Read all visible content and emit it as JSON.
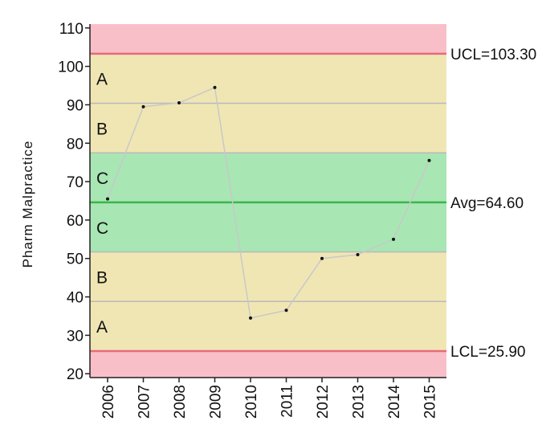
{
  "chart_data": {
    "type": "line",
    "title": "",
    "xlabel": "",
    "ylabel": "Pharm Malpractice",
    "x": [
      "2006",
      "2007",
      "2008",
      "2009",
      "2010",
      "2011",
      "2012",
      "2013",
      "2014",
      "2015"
    ],
    "series": [
      {
        "values": [
          65.5,
          89.5,
          90.5,
          94.5,
          34.5,
          36.5,
          50,
          51,
          55,
          75.5
        ]
      }
    ],
    "ylim": [
      19,
      111
    ],
    "yticks": [
      "20",
      "30",
      "40",
      "50",
      "60",
      "70",
      "80",
      "90",
      "100",
      "110"
    ],
    "control_limits": {
      "ucl": {
        "value": 103.3,
        "label": "UCL=103.30"
      },
      "avg": {
        "value": 64.6,
        "label": "Avg=64.60"
      },
      "lcl": {
        "value": 25.9,
        "label": "LCL=25.90"
      }
    },
    "zones": [
      {
        "label": "A",
        "from": 90.4,
        "to": 103.3,
        "color": "#f0e6b4"
      },
      {
        "label": "B",
        "from": 77.5,
        "to": 90.4,
        "color": "#f0e6b4"
      },
      {
        "label": "C",
        "from": 64.6,
        "to": 77.5,
        "color": "#a8e6b4"
      },
      {
        "label": "C",
        "from": 51.7,
        "to": 64.6,
        "color": "#a8e6b4"
      },
      {
        "label": "B",
        "from": 38.8,
        "to": 51.7,
        "color": "#f0e6b4"
      },
      {
        "label": "A",
        "from": 25.9,
        "to": 38.8,
        "color": "#f0e6b4"
      }
    ],
    "outside_color": "#f9bfc8",
    "limit_line_color": "#e86a7a",
    "avg_line_color": "#3cb54a",
    "series_line_color": "#c8c8c8",
    "zone_line_color": "#b9b9b9",
    "grid": false
  }
}
